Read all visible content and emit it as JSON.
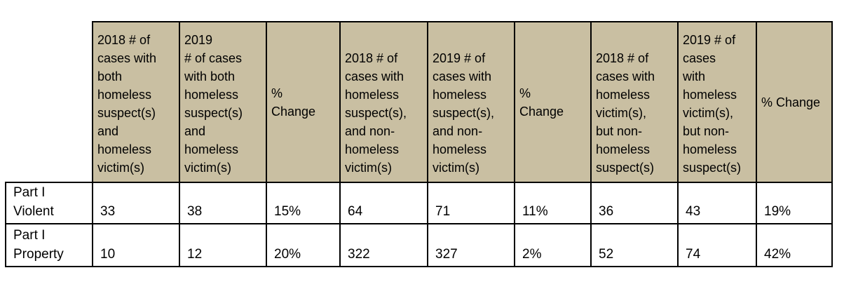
{
  "table": {
    "columns": [
      "2018 # of\ncases with\nboth\nhomeless\nsuspect(s)\nand\nhomeless\nvictim(s)",
      "2019\n# of cases\nwith both\nhomeless\nsuspect(s)\nand\nhomeless\nvictim(s)",
      "%\nChange",
      "2018 # of\ncases with\nhomeless\nsuspect(s),\nand non-\nhomeless\nvictim(s)",
      "2019 # of\ncases with\nhomeless\nsuspect(s),\nand non-\nhomeless\nvictim(s)",
      "%\nChange",
      "2018 # of\ncases with\nhomeless\nvictim(s),\nbut non-\nhomeless\nsuspect(s)",
      "2019 # of\ncases\nwith\nhomeless\nvictim(s),\nbut non-\nhomeless\nsuspect(s)",
      "% Change"
    ],
    "rows": [
      {
        "label": "Part I\nViolent",
        "cells": [
          "33",
          "38",
          "15%",
          "64",
          "71",
          "11%",
          "36",
          "43",
          "19%"
        ]
      },
      {
        "label": "Part I\nProperty",
        "cells": [
          "10",
          "12",
          "20%",
          "322",
          "327",
          "2%",
          "52",
          "74",
          "42%"
        ]
      }
    ]
  }
}
